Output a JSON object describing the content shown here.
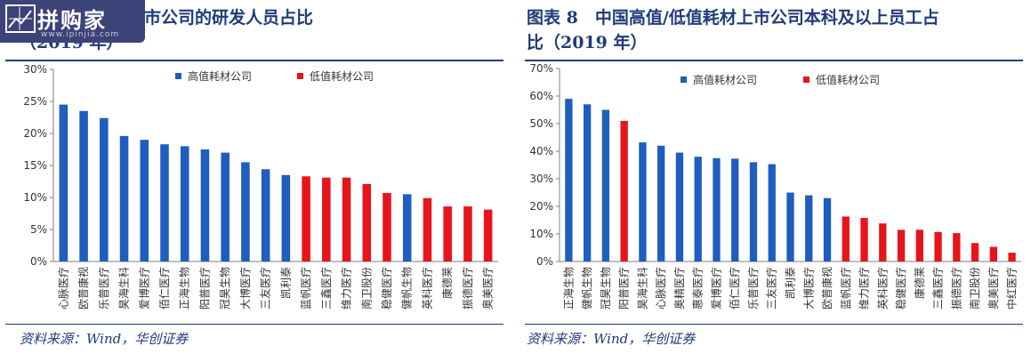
{
  "watermark": {
    "brand": "拼购家",
    "url": "www.ipinjia.com"
  },
  "left": {
    "title": "高值/低值耗材上市公司的研发人员占比\n（2019 年）",
    "source": "资料来源：Wind，华创证券"
  },
  "right": {
    "title": "图表 8　中国高值/低值耗材上市公司本科及以上员工占\n比（2019 年）",
    "source": "资料来源：Wind，华创证券"
  },
  "colors": {
    "high": "#1f5dbf",
    "low": "#e8141c",
    "axis": "#7f7f7f",
    "text": "#333333",
    "navy": "#1f3c7a"
  },
  "chart_data": [
    {
      "type": "bar",
      "title": "高值/低值耗材上市公司的研发人员占比（2019 年）",
      "ylim": [
        0,
        30
      ],
      "yticks": [
        "0%",
        "5%",
        "10%",
        "15%",
        "20%",
        "25%",
        "30%"
      ],
      "legend": [
        "高值耗材公司",
        "低值耗材公司"
      ],
      "legend_position": "top",
      "grid": false,
      "categories": [
        "心脉医疗",
        "欧普康视",
        "乐普医疗",
        "昊海生科",
        "爱博医疗",
        "佰仁医疗",
        "正海生物",
        "阳普医疗",
        "冠昊生物",
        "大博医疗",
        "三友医疗",
        "凯利泰",
        "蓝帆医疗",
        "三鑫医疗",
        "维力医疗",
        "南卫股份",
        "稳健医疗",
        "健帆生物",
        "英科医疗",
        "康德莱",
        "振德医疗",
        "奥美医疗"
      ],
      "values": [
        24.5,
        23.5,
        22.4,
        19.6,
        19.0,
        18.3,
        18.0,
        17.5,
        17.0,
        15.5,
        14.4,
        13.5,
        13.3,
        13.1,
        13.1,
        12.1,
        10.7,
        10.5,
        9.9,
        8.6,
        8.6,
        8.1
      ],
      "groups": [
        "high",
        "high",
        "high",
        "high",
        "high",
        "high",
        "high",
        "high",
        "high",
        "high",
        "high",
        "high",
        "low",
        "low",
        "low",
        "low",
        "low",
        "high",
        "low",
        "low",
        "low",
        "low"
      ]
    },
    {
      "type": "bar",
      "title": "中国高值/低值耗材上市公司本科及以上员工占比（2019 年）",
      "ylim": [
        0,
        70
      ],
      "yticks": [
        "0%",
        "10%",
        "20%",
        "30%",
        "40%",
        "50%",
        "60%",
        "70%"
      ],
      "legend": [
        "高值耗材公司",
        "低值耗材公司"
      ],
      "legend_position": "top",
      "grid": false,
      "categories": [
        "正海生物",
        "健帆生物",
        "冠昊生物",
        "阳普医疗",
        "昊海生科",
        "心脉医疗",
        "奥精医疗",
        "惠泰医疗",
        "爱博医疗",
        "佰仁医疗",
        "乐普医疗",
        "三友医疗",
        "凯利泰",
        "大博医疗",
        "欧普康视",
        "蓝帆医疗",
        "维力医疗",
        "英科医疗",
        "稳健医疗",
        "康德莱",
        "三鑫医疗",
        "振德医疗",
        "南卫股份",
        "奥美医疗",
        "中红医疗"
      ],
      "values": [
        59,
        57,
        55,
        51,
        43.2,
        42,
        39.5,
        38,
        37.5,
        37.3,
        36,
        35.3,
        25,
        24,
        23,
        16.3,
        15.8,
        13.8,
        11.5,
        11.5,
        10.7,
        10.3,
        6.7,
        5.3,
        3.2
      ],
      "groups": [
        "high",
        "high",
        "high",
        "low",
        "high",
        "high",
        "high",
        "high",
        "high",
        "high",
        "high",
        "high",
        "high",
        "high",
        "high",
        "low",
        "low",
        "low",
        "low",
        "low",
        "low",
        "low",
        "low",
        "low",
        "low"
      ]
    }
  ]
}
